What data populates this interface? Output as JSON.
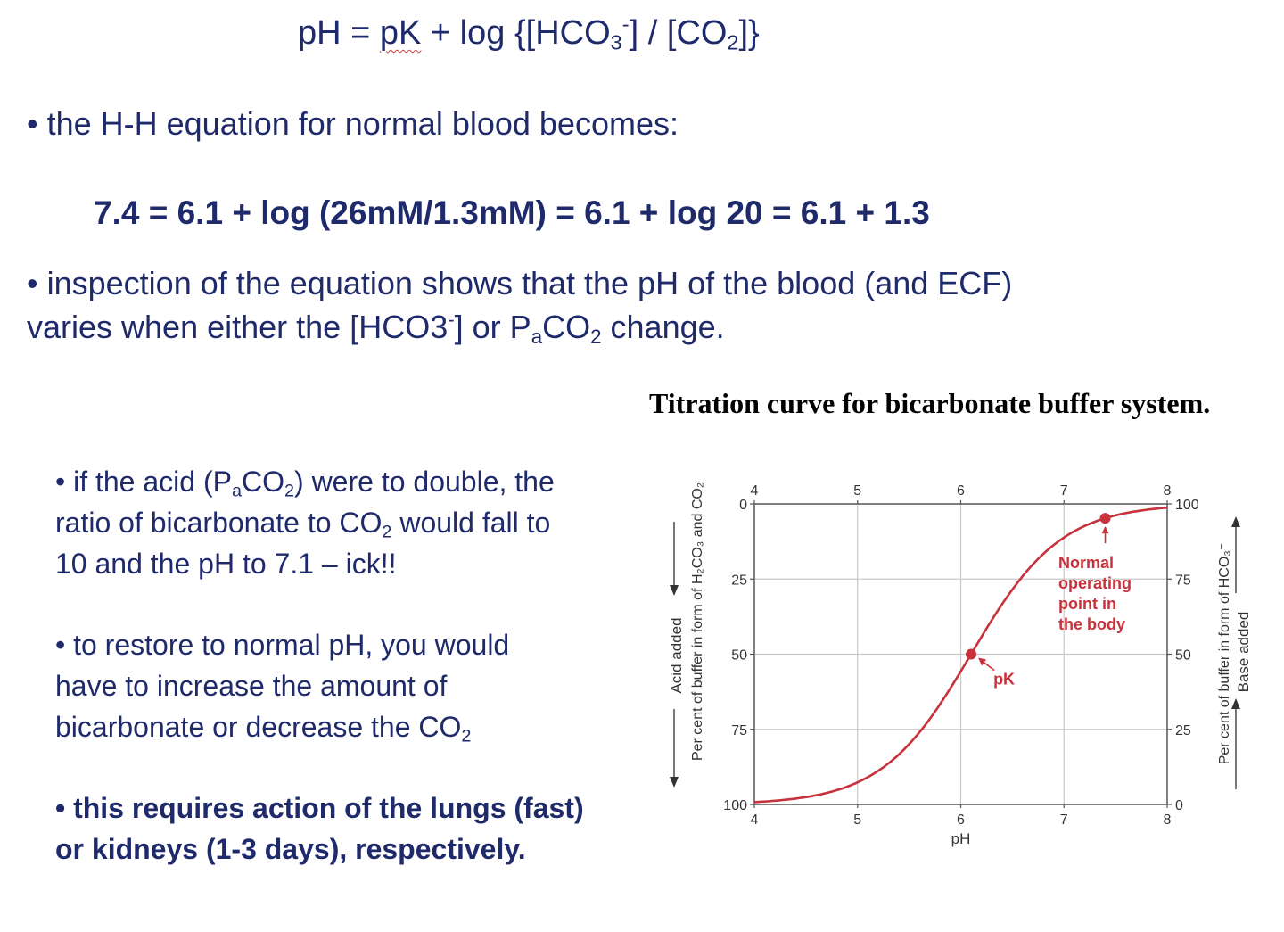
{
  "equation_top": {
    "lhs": "pH = ",
    "pk": "pK",
    "log_open": " + log {[HCO",
    "sub_3": "3",
    "sup_minus": "-",
    "mid": "] / [CO",
    "sub_2": "2",
    "close": "]}"
  },
  "bullet1": "• the H-H equation for normal blood becomes:",
  "equation_main": "7.4 = 6.1 + log (26mM/1.3mM)  = 6.1 + log 20 = 6.1 + 1.3",
  "bullet2": {
    "line1": "• inspection of the equation  shows that the pH of the blood (and ECF)",
    "line2_a": "varies when either the [HCO3",
    "line2_sup": "-",
    "line2_b": "] or P",
    "line2_sub_a": "a",
    "line2_c": "CO",
    "line2_sub_2": "2",
    "line2_d": " change."
  },
  "block1": {
    "l1_a": "• if the acid (P",
    "l1_sub_a": "a",
    "l1_b": "CO",
    "l1_sub_2": "2",
    "l1_c": ") were to double, the",
    "l2_a": "ratio of bicarbonate to CO",
    "l2_sub_2": "2",
    "l2_b": " would fall to",
    "l3": "10 and the pH to 7.1 – ick!!"
  },
  "block2": {
    "l1": "• to restore to normal pH, you would",
    "l2": "have to increase the amount of",
    "l3_a": "bicarbonate or decrease the CO",
    "l3_sub_2": "2"
  },
  "block3": {
    "l1": "• this requires action of the lungs (fast)",
    "l2": "or kidneys (1-3 days), respectively."
  },
  "figure_title": "Titration curve for bicarbonate buffer system.",
  "chart_data": {
    "type": "line",
    "x_ticks_top": [
      "4",
      "5",
      "6",
      "7",
      "8"
    ],
    "x_ticks_bottom": [
      "4",
      "5",
      "6",
      "7",
      "8"
    ],
    "xlabel": "pH",
    "xlim": [
      4,
      8
    ],
    "left_ticks": [
      "0",
      "25",
      "50",
      "75",
      "100"
    ],
    "right_ticks": [
      "100",
      "75",
      "50",
      "25",
      "0"
    ],
    "ylim": [
      0,
      100
    ],
    "left_label_1": "Acid added",
    "left_label_2": "Per cent of buffer in form of H₂CO₃ and CO₂",
    "right_label_1": "Per cent of buffer in form of HCO₃⁻",
    "right_label_2": "Base added",
    "grid": true,
    "curve": {
      "pK": 6.1,
      "x_start": 4,
      "x_end": 8
    },
    "points": [
      {
        "x": 6.1,
        "y": 50,
        "label": "pK"
      },
      {
        "x": 7.4,
        "y": 95.2,
        "label_lines": [
          "Normal",
          "operating",
          "point in",
          "the body"
        ]
      }
    ],
    "colors": {
      "curve": "#c8323c",
      "grid": "#c8c8c8",
      "axis": "#555555",
      "text": "#333333"
    }
  }
}
